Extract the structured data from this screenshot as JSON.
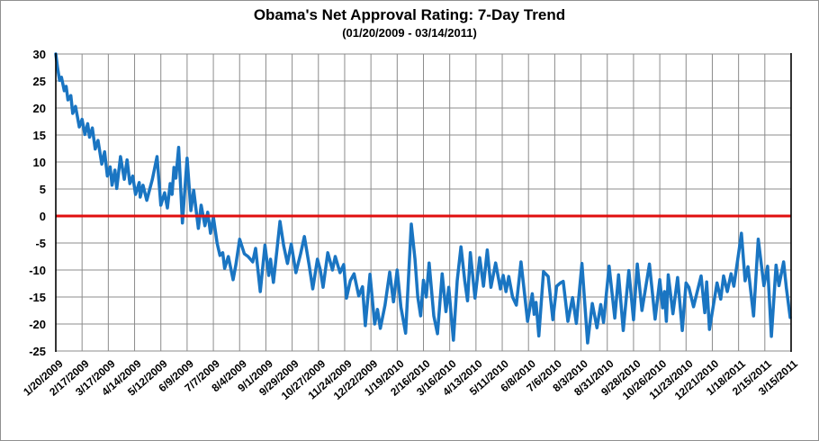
{
  "chart_data": {
    "type": "line",
    "title": "Obama's Net Approval Rating: 7-Day Trend",
    "subtitle": "(01/20/2009 - 03/14/2011)",
    "legend_position": "none",
    "grid": {
      "show": true,
      "color": "#8C8C8C"
    },
    "x_axis": {
      "unit": "date",
      "tick_interval_days": 28,
      "total_days": 784,
      "tick_labels": [
        "1/20/2009",
        "2/17/2009",
        "3/17/2009",
        "4/14/2009",
        "5/12/2009",
        "6/9/2009",
        "7/7/2009",
        "8/4/2009",
        "9/1/2009",
        "9/29/2009",
        "10/27/2009",
        "11/24/2009",
        "12/22/2009",
        "1/19/2010",
        "2/16/2010",
        "3/16/2010",
        "4/13/2010",
        "5/11/2010",
        "6/8/2010",
        "7/6/2010",
        "8/3/2010",
        "8/31/2010",
        "9/28/2010",
        "10/26/2010",
        "11/23/2010",
        "12/21/2010",
        "1/18/2011",
        "2/15/2011",
        "3/15/2011"
      ]
    },
    "y_axis": {
      "min": -25,
      "max": 30,
      "tick_step": 5,
      "ticks": [
        30,
        25,
        20,
        15,
        10,
        5,
        0,
        -5,
        -10,
        -15,
        -20,
        -25
      ]
    },
    "reference_line": {
      "value": 0,
      "color": "#E00F0F"
    },
    "series": [
      {
        "name": "Net approval rating (7-day trend)",
        "color": "#1A75C2",
        "x_days": [
          0,
          2,
          4,
          6,
          9,
          11,
          13,
          16,
          18,
          21,
          25,
          28,
          31,
          34,
          36,
          39,
          42,
          45,
          49,
          52,
          55,
          58,
          60,
          63,
          65,
          69,
          73,
          76,
          79,
          82,
          85,
          89,
          90,
          93,
          97,
          103,
          108,
          112,
          116,
          119,
          122,
          124,
          126,
          128,
          131,
          135,
          140,
          144,
          147,
          152,
          155,
          159,
          162,
          165,
          168,
          172,
          175,
          178,
          180,
          184,
          189,
          192,
          196,
          201,
          205,
          210,
          213,
          218,
          223,
          227,
          229,
          232,
          236,
          239,
          243,
          247,
          251,
          256,
          261,
          265,
          270,
          274,
          279,
          282,
          285,
          290,
          295,
          298,
          303,
          307,
          310,
          314,
          318,
          323,
          327,
          330,
          335,
          340,
          343,
          346,
          351,
          356,
          360,
          364,
          368,
          373,
          379,
          383,
          386,
          389,
          392,
          395,
          398,
          403,
          407,
          412,
          416,
          419,
          424,
          428,
          432,
          436,
          439,
          442,
          447,
          452,
          456,
          460,
          464,
          469,
          474,
          477,
          480,
          483,
          487,
          491,
          496,
          503,
          508,
          510,
          512,
          515,
          520,
          525,
          530,
          534,
          538,
          541,
          546,
          551,
          555,
          561,
          567,
          572,
          577,
          581,
          584,
          590,
          596,
          600,
          605,
          611,
          616,
          620,
          625,
          633,
          639,
          644,
          647,
          649,
          651,
          653,
          658,
          663,
          668,
          672,
          675,
          680,
          688,
          692,
          694,
          697,
          705,
          709,
          712,
          716,
          720,
          723,
          728,
          731,
          735,
          738,
          744,
          749,
          755,
          759,
          763,
          768,
          771,
          776,
          779,
          783
        ],
        "values": [
          30,
          27.3,
          25.1,
          25.7,
          23.2,
          24,
          21.5,
          22.3,
          19,
          20.3,
          16.5,
          17.9,
          15.1,
          17.1,
          14.6,
          16.3,
          12.4,
          14,
          9.6,
          11.9,
          7.4,
          9.1,
          5.7,
          8.5,
          5.1,
          11,
          6.8,
          10.4,
          6,
          7.4,
          4,
          6.2,
          3.5,
          5.7,
          2.9,
          6.8,
          11,
          2,
          4.3,
          1.5,
          6,
          4,
          9,
          7,
          12.7,
          -1.3,
          10.7,
          1,
          4.8,
          -2.3,
          2,
          -1.8,
          0.7,
          -3.2,
          -0.2,
          -5,
          -7.3,
          -6.8,
          -9.7,
          -7.5,
          -11.8,
          -9,
          -4.3,
          -7,
          -7.5,
          -8.5,
          -6,
          -14,
          -5.4,
          -11,
          -8,
          -12.3,
          -6,
          -1,
          -5.5,
          -8.8,
          -5.2,
          -10.5,
          -7,
          -3.8,
          -9,
          -13.5,
          -8,
          -10,
          -13.2,
          -6.8,
          -10,
          -7.5,
          -10.5,
          -9,
          -15.2,
          -12,
          -10.7,
          -14.8,
          -13.1,
          -20.3,
          -10.8,
          -20,
          -17.3,
          -20.8,
          -16.5,
          -10.4,
          -15.9,
          -10,
          -16.9,
          -21.7,
          -1.5,
          -8,
          -15,
          -18.5,
          -11.9,
          -15,
          -8.7,
          -18.5,
          -21.8,
          -10.7,
          -17.7,
          -13.2,
          -23,
          -12,
          -5.7,
          -12,
          -15.7,
          -6.8,
          -15.2,
          -7.7,
          -13,
          -6.3,
          -13.2,
          -8.7,
          -13.5,
          -11,
          -14,
          -11.2,
          -15,
          -16.5,
          -8.5,
          -19.5,
          -14.4,
          -18.2,
          -16,
          -22.2,
          -10.3,
          -11.2,
          -19.2,
          -13,
          -12.4,
          -12.1,
          -19.5,
          -15.1,
          -19.9,
          -8.8,
          -23.5,
          -16.2,
          -20.7,
          -16.4,
          -19.7,
          -9.3,
          -18.9,
          -10.9,
          -21.2,
          -10.1,
          -19.2,
          -8.9,
          -17.5,
          -8.9,
          -19.1,
          -11.8,
          -17,
          -14,
          -19.5,
          -10.9,
          -18.1,
          -11.4,
          -21.2,
          -12.4,
          -13.2,
          -16.8,
          -11.1,
          -17.9,
          -12.2,
          -21,
          -12.4,
          -15.4,
          -11.1,
          -14,
          -10.7,
          -13,
          -7,
          -3.2,
          -12,
          -9.4,
          -18.5,
          -4.3,
          -12.9,
          -9.3,
          -22.3,
          -9.1,
          -12.9,
          -8.5,
          -13.4,
          -18.8
        ]
      }
    ],
    "style": {
      "series_stroke_width": 3.5,
      "reference_stroke_width": 3,
      "axis_color": "#000000",
      "text_color": "#000000",
      "background": "#FFFFFF"
    }
  }
}
